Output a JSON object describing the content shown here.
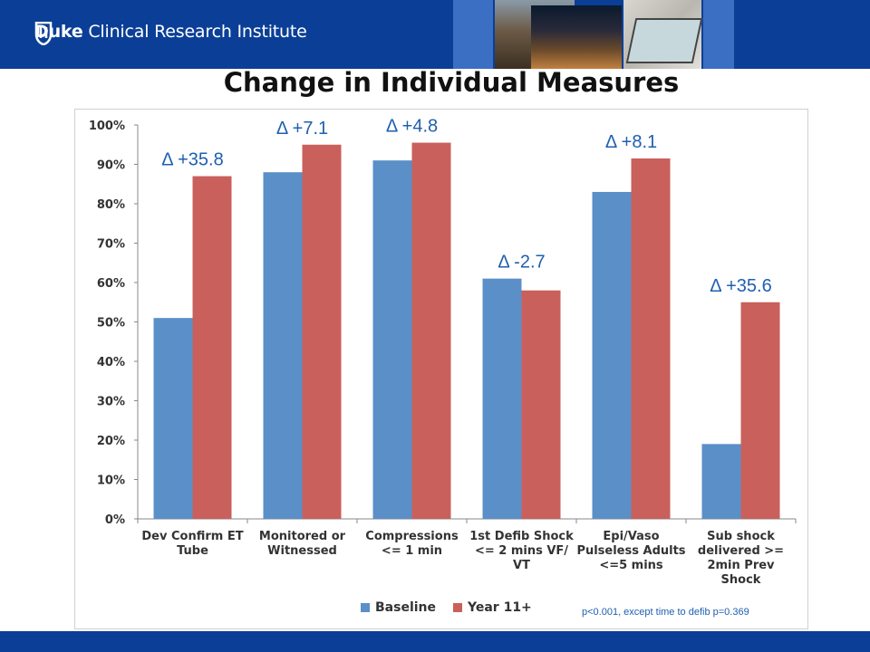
{
  "header": {
    "logo_text_bold": "Duke",
    "logo_text_rest": " Clinical Research Institute",
    "bar_color": "#0b3f97"
  },
  "title": "Change in Individual Measures",
  "footnote": "p<0.001, except time to defib p=0.369",
  "chart_data": {
    "type": "bar",
    "categories": [
      [
        "Dev Confirm ET",
        "Tube"
      ],
      [
        "Monitored or",
        "Witnessed"
      ],
      [
        "Compressions",
        "<= 1 min"
      ],
      [
        "1st Defib Shock",
        "<= 2 mins VF/",
        "VT"
      ],
      [
        "Epi/Vaso",
        "Pulseless Adults",
        "<=5 mins"
      ],
      [
        "Sub shock",
        "delivered >=",
        "2min Prev",
        "Shock"
      ]
    ],
    "series": [
      {
        "name": "Baseline",
        "color": "#5b8fc8",
        "values": [
          51,
          88,
          91,
          61,
          83,
          19
        ]
      },
      {
        "name": "Year 11+",
        "color": "#c9605c",
        "values": [
          87,
          95,
          95.5,
          58,
          91.5,
          55
        ]
      }
    ],
    "delta_labels": [
      "Δ +35.8",
      "Δ +7.1",
      "Δ +4.8",
      "Δ -2.7",
      "Δ +8.1",
      "Δ +35.6"
    ],
    "y_ticks": [
      "0%",
      "10%",
      "20%",
      "30%",
      "40%",
      "50%",
      "60%",
      "70%",
      "80%",
      "90%",
      "100%"
    ],
    "ylim": [
      0,
      100
    ],
    "legend_position": "bottom",
    "grid": false,
    "label_color": "#1f5fb0"
  }
}
